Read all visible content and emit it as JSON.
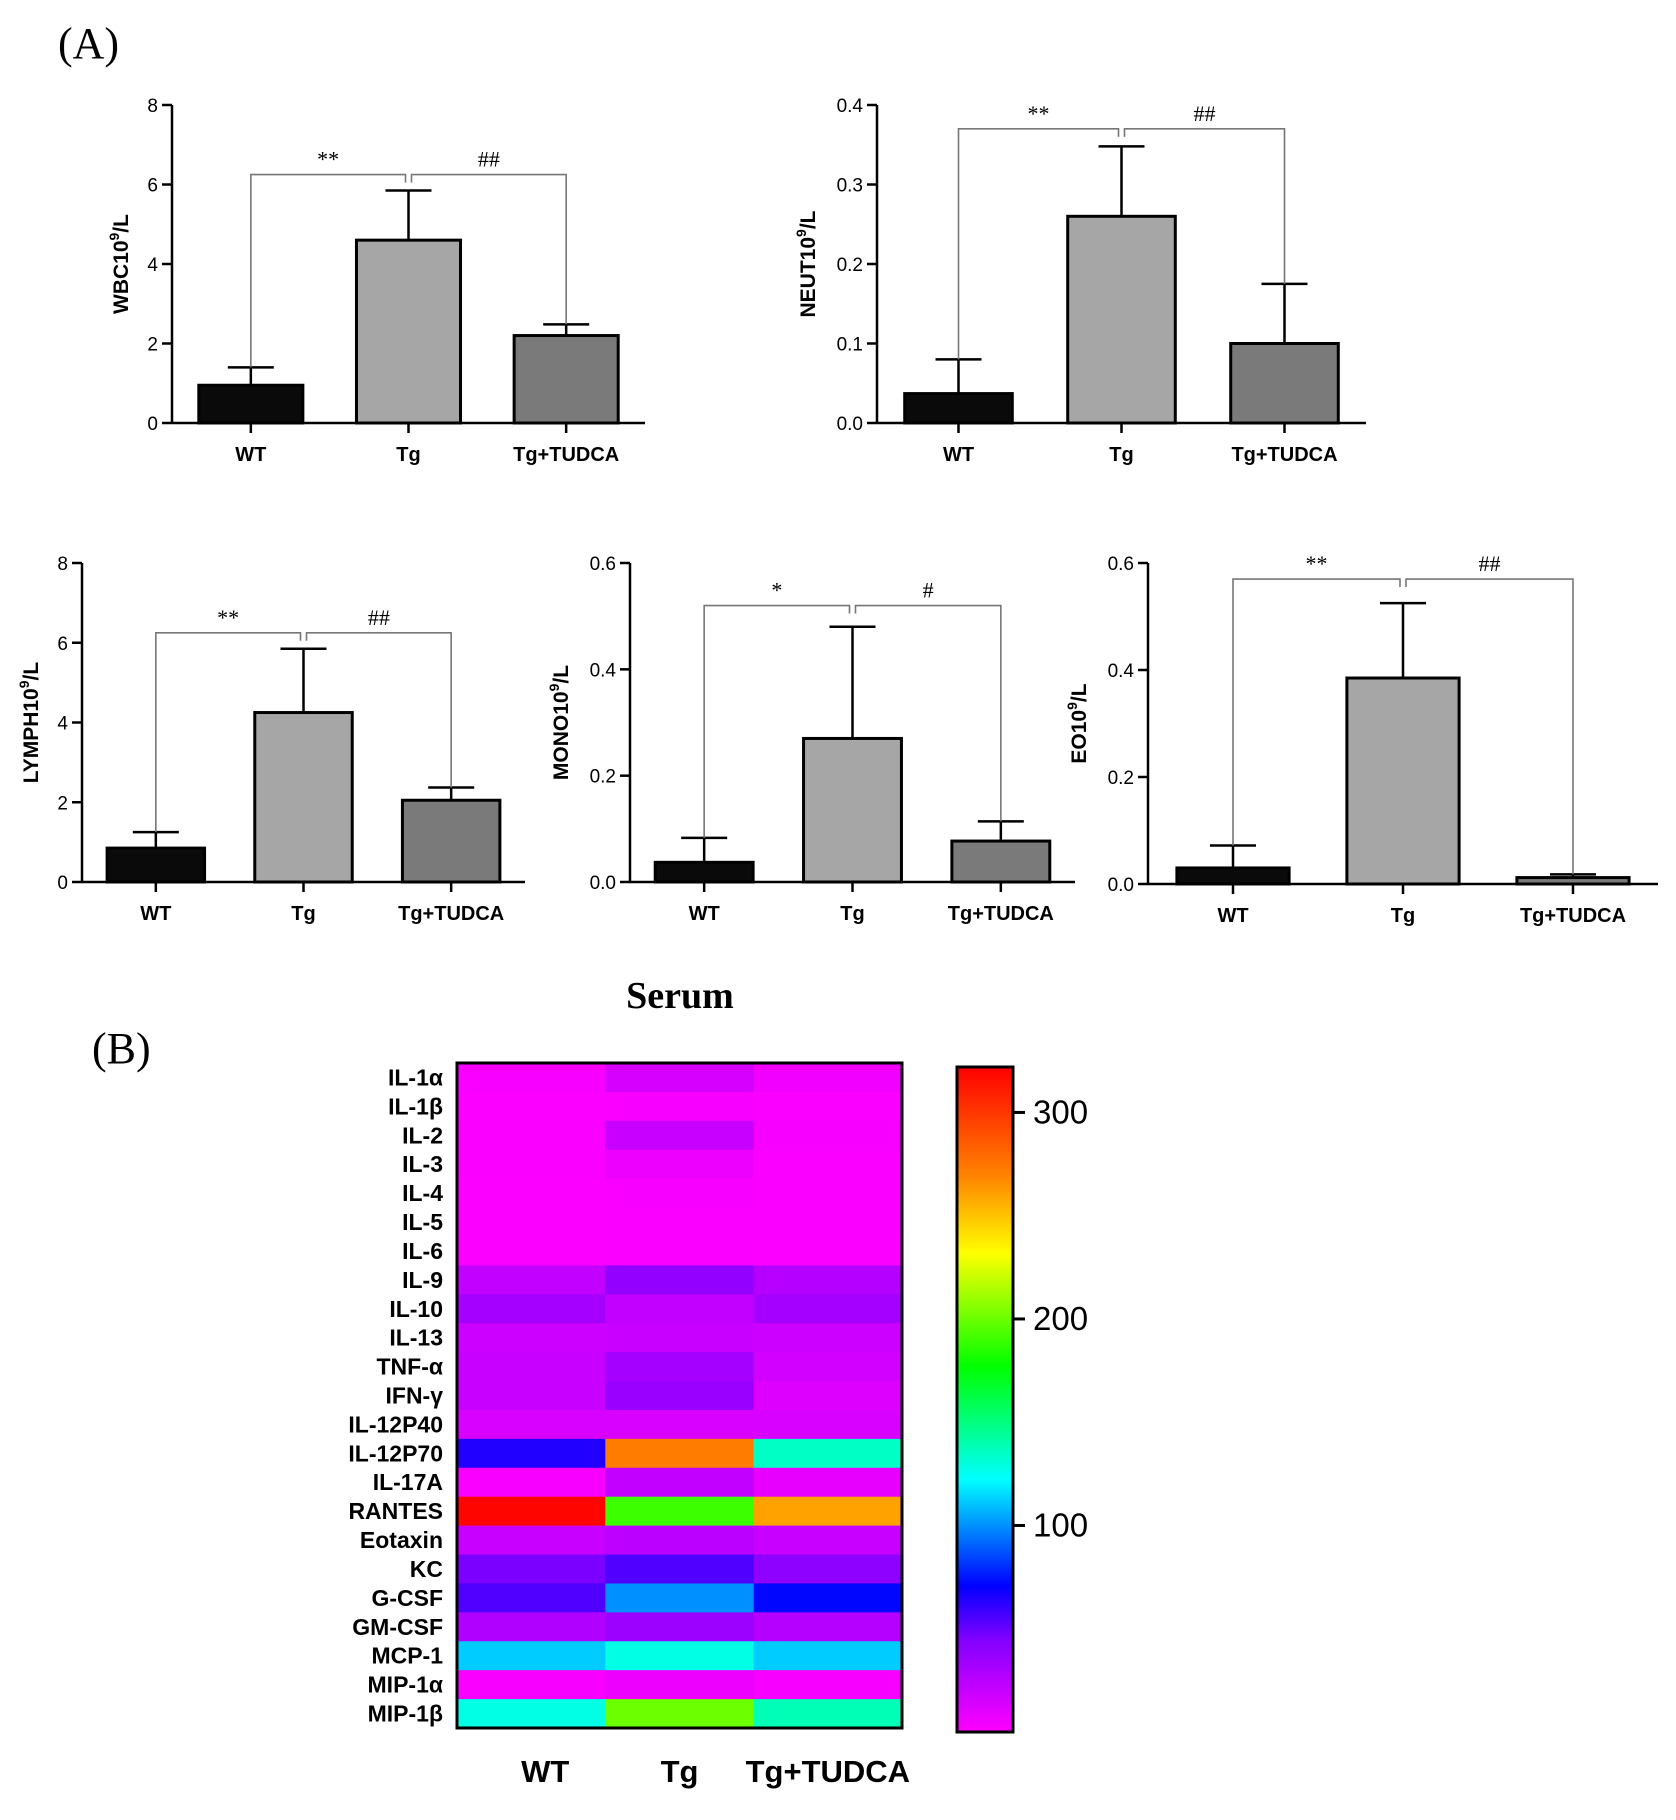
{
  "panel_a_label": "(A)",
  "panel_b_label": "(B)",
  "chart_data": [
    {
      "type": "bar",
      "id": "wbc",
      "ylabel": "WBC10",
      "ylabel_sup": "9",
      "ylabel_unit": "/L",
      "categories": [
        "WT",
        "Tg",
        "Tg+TUDCA"
      ],
      "values": [
        0.95,
        4.6,
        2.2
      ],
      "errors": [
        0.45,
        1.25,
        0.28
      ],
      "bar_colors": [
        "#0a0a0a",
        "#a6a6a6",
        "#7a7a7a"
      ],
      "ylim": [
        0,
        8
      ],
      "yticks": [
        "0",
        "2",
        "4",
        "6",
        "8"
      ],
      "sig": [
        {
          "label": "**",
          "from": 0,
          "to": 1,
          "y": 6.25
        },
        {
          "label": "##",
          "from": 1,
          "to": 2,
          "y": 6.25
        }
      ]
    },
    {
      "type": "bar",
      "id": "neut",
      "ylabel": "NEUT10",
      "ylabel_sup": "9",
      "ylabel_unit": "/L",
      "categories": [
        "WT",
        "Tg",
        "Tg+TUDCA"
      ],
      "values": [
        0.037,
        0.26,
        0.1
      ],
      "errors": [
        0.043,
        0.088,
        0.075
      ],
      "bar_colors": [
        "#0a0a0a",
        "#a6a6a6",
        "#7a7a7a"
      ],
      "ylim": [
        0,
        0.4
      ],
      "yticks": [
        "0.0",
        "0.1",
        "0.2",
        "0.3",
        "0.4"
      ],
      "sig": [
        {
          "label": "**",
          "from": 0,
          "to": 1,
          "y": 0.37
        },
        {
          "label": "##",
          "from": 1,
          "to": 2,
          "y": 0.37
        }
      ]
    },
    {
      "type": "bar",
      "id": "lymph",
      "ylabel": "LYMPH10",
      "ylabel_sup": "9",
      "ylabel_unit": "/L",
      "categories": [
        "WT",
        "Tg",
        "Tg+TUDCA"
      ],
      "values": [
        0.85,
        4.25,
        2.05
      ],
      "errors": [
        0.4,
        1.6,
        0.32
      ],
      "bar_colors": [
        "#0a0a0a",
        "#a6a6a6",
        "#7a7a7a"
      ],
      "ylim": [
        0,
        8
      ],
      "yticks": [
        "0",
        "2",
        "4",
        "6",
        "8"
      ],
      "sig": [
        {
          "label": "**",
          "from": 0,
          "to": 1,
          "y": 6.25
        },
        {
          "label": "##",
          "from": 1,
          "to": 2,
          "y": 6.25
        }
      ]
    },
    {
      "type": "bar",
      "id": "mono",
      "ylabel": "MONO10",
      "ylabel_sup": "9",
      "ylabel_unit": "/L",
      "categories": [
        "WT",
        "Tg",
        "Tg+TUDCA"
      ],
      "values": [
        0.037,
        0.27,
        0.077
      ],
      "errors": [
        0.046,
        0.21,
        0.037
      ],
      "bar_colors": [
        "#0a0a0a",
        "#a6a6a6",
        "#7a7a7a"
      ],
      "ylim": [
        0,
        0.6
      ],
      "yticks": [
        "0.0",
        "0.2",
        "0.4",
        "0.6"
      ],
      "sig": [
        {
          "label": "*",
          "from": 0,
          "to": 1,
          "y": 0.52
        },
        {
          "label": "#",
          "from": 1,
          "to": 2,
          "y": 0.52
        }
      ]
    },
    {
      "type": "bar",
      "id": "eo",
      "ylabel": "EO10",
      "ylabel_sup": "9",
      "ylabel_unit": "/L",
      "categories": [
        "WT",
        "Tg",
        "Tg+TUDCA"
      ],
      "values": [
        0.03,
        0.385,
        0.012
      ],
      "errors": [
        0.042,
        0.14,
        0.006
      ],
      "bar_colors": [
        "#0a0a0a",
        "#a6a6a6",
        "#7a7a7a"
      ],
      "ylim": [
        0,
        0.6
      ],
      "yticks": [
        "0.0",
        "0.2",
        "0.4",
        "0.6"
      ],
      "sig": [
        {
          "label": "**",
          "from": 0,
          "to": 1,
          "y": 0.57
        },
        {
          "label": "##",
          "from": 1,
          "to": 2,
          "y": 0.57
        }
      ]
    },
    {
      "type": "heatmap",
      "id": "serum",
      "title": "Serum",
      "columns": [
        "WT",
        "Tg",
        "Tg+TUDCA"
      ],
      "rows": [
        "IL-1α",
        "IL-1β",
        "IL-2",
        "IL-3",
        "IL-4",
        "IL-5",
        "IL-6",
        "IL-9",
        "IL-10",
        "IL-13",
        "TNF-α",
        "IFN-γ",
        "IL-12P40",
        "IL-12P70",
        "IL-17A",
        "RANTES",
        "Eotaxin",
        "KC",
        "G-CSF",
        "GM-CSF",
        "MCP-1",
        "MIP-1α",
        "MIP-1β"
      ],
      "values": [
        [
          3,
          15,
          5
        ],
        [
          1,
          3,
          2
        ],
        [
          2,
          20,
          3
        ],
        [
          2,
          6,
          2
        ],
        [
          1,
          3,
          2
        ],
        [
          1,
          2,
          2
        ],
        [
          1,
          2,
          1
        ],
        [
          22,
          38,
          26
        ],
        [
          32,
          22,
          32
        ],
        [
          18,
          20,
          18
        ],
        [
          20,
          32,
          16
        ],
        [
          20,
          36,
          12
        ],
        [
          14,
          14,
          14
        ],
        [
          64,
          272,
          135
        ],
        [
          3,
          22,
          8
        ],
        [
          320,
          190,
          260
        ],
        [
          20,
          24,
          20
        ],
        [
          46,
          55,
          40
        ],
        [
          55,
          100,
          72
        ],
        [
          28,
          35,
          26
        ],
        [
          112,
          128,
          112
        ],
        [
          3,
          6,
          3
        ],
        [
          128,
          200,
          138
        ]
      ],
      "colorbar_ticks": [
        "100",
        "200",
        "300"
      ],
      "colorbar_range": [
        0,
        322
      ]
    }
  ]
}
